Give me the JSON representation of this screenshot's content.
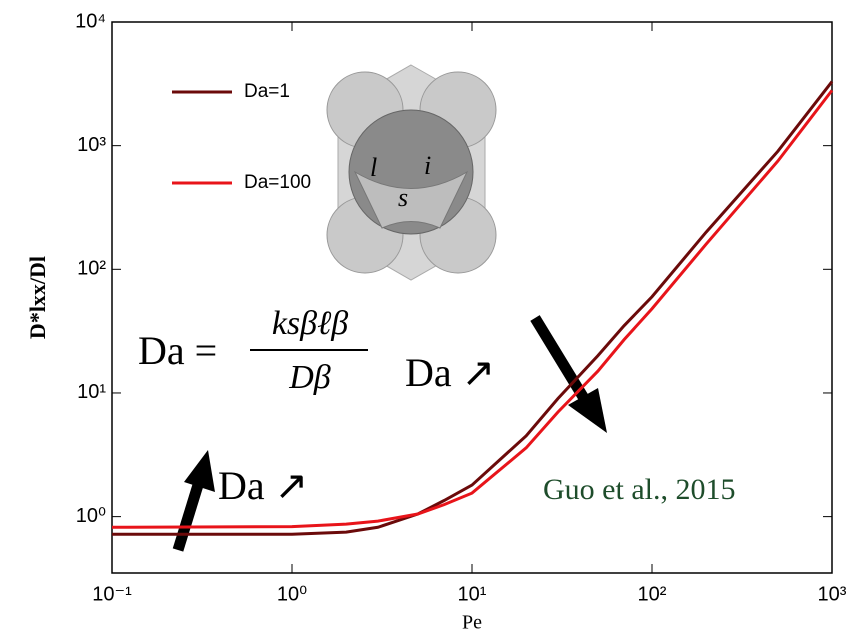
{
  "chart_data": {
    "type": "line",
    "log_x": true,
    "log_y": true,
    "xlabel": "Pe",
    "ylabel": "D*lxx/Dl",
    "x": [
      0.1,
      1,
      2,
      3,
      5,
      7,
      10,
      20,
      30,
      50,
      70,
      100,
      200,
      500,
      1000
    ],
    "series": [
      {
        "name": "Da=1",
        "color": "#6b0a0a",
        "values": [
          0.72,
          0.72,
          0.75,
          0.82,
          1.05,
          1.35,
          1.8,
          4.5,
          9,
          20,
          35,
          60,
          200,
          900,
          3300
        ]
      },
      {
        "name": "Da=100",
        "color": "#e8141a",
        "values": [
          0.82,
          0.83,
          0.87,
          0.92,
          1.05,
          1.25,
          1.55,
          3.6,
          7,
          15,
          27,
          48,
          160,
          750,
          2800
        ]
      }
    ],
    "xlim": [
      0.1,
      1000
    ],
    "ylim": [
      0.35,
      10000
    ],
    "xticks": [
      {
        "value": 0.1,
        "label": "10⁻¹"
      },
      {
        "value": 1,
        "label": "10⁰"
      },
      {
        "value": 10,
        "label": "10¹"
      },
      {
        "value": 100,
        "label": "10²"
      },
      {
        "value": 1000,
        "label": "10³"
      }
    ],
    "yticks": [
      {
        "value": 1,
        "label": "10⁰"
      },
      {
        "value": 10,
        "label": "10¹"
      },
      {
        "value": 100,
        "label": "10²"
      },
      {
        "value": 1000,
        "label": "10³"
      },
      {
        "value": 10000,
        "label": "10⁴"
      }
    ],
    "grid": false,
    "legend": "upper left",
    "formula": {
      "lhs": "Da =",
      "numerator": "ksβℓβ",
      "denominator": "Dβ"
    },
    "annotations": [
      "Da ↗",
      "Da ↗",
      "Guo et al., 2015"
    ],
    "inset_labels": [
      "l",
      "i",
      "s"
    ]
  }
}
